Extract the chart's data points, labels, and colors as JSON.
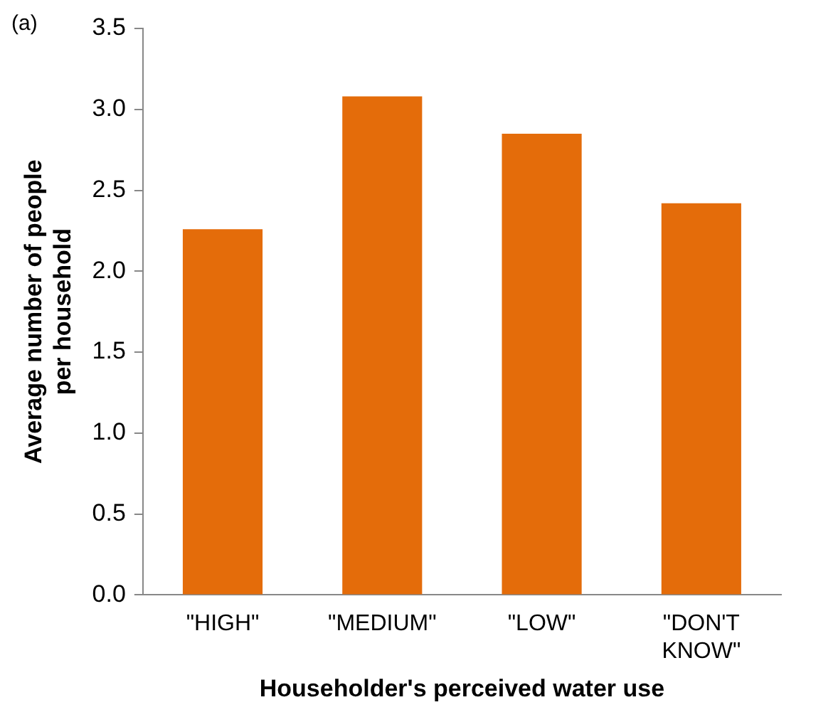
{
  "chart_data": {
    "type": "bar",
    "xlabel": "Householder's perceived water use",
    "ylabel": "Average number of people per household",
    "categories": [
      "\"HIGH\"",
      "\"MEDIUM\"",
      "\"LOW\"",
      "\"DON'T KNOW\""
    ],
    "values": [
      2.26,
      3.08,
      2.85,
      2.42
    ],
    "color": "#e46c0a",
    "ylim": [
      0,
      3.5
    ],
    "yticks": [
      {
        "value": 0,
        "label": "0.0"
      },
      {
        "value": 0.5,
        "label": "0.5"
      },
      {
        "value": 1,
        "label": "1.0"
      },
      {
        "value": 1.5,
        "label": "1.5"
      },
      {
        "value": 2,
        "label": "2.0"
      },
      {
        "value": 2.5,
        "label": "2.5"
      },
      {
        "value": 3,
        "label": "3.0"
      },
      {
        "value": 3.5,
        "label": "3.5"
      }
    ],
    "annotations": [
      "(a)"
    ],
    "grid": false,
    "legend": false
  }
}
